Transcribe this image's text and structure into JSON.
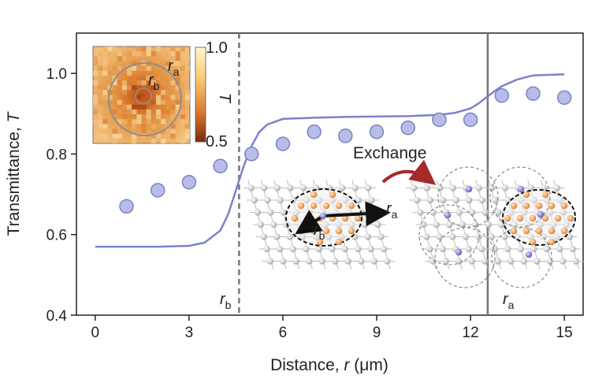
{
  "chart_data": {
    "type": "scatter",
    "title": "",
    "xlabel": "Distance, r (μm)",
    "xlabel_main": "Distance, ",
    "xlabel_var": "r",
    "xlabel_unit": " (μm)",
    "ylabel": "Transmittance, T",
    "ylabel_main": "Transmittance, ",
    "ylabel_var": "T",
    "xlim": [
      -0.6,
      15.6
    ],
    "ylim": [
      0.4,
      1.1
    ],
    "xticks": [
      0,
      3,
      6,
      9,
      12,
      15
    ],
    "yticks": [
      0.4,
      0.6,
      0.8,
      1.0
    ],
    "xtick_labels": [
      "0",
      "3",
      "6",
      "9",
      "12",
      "15"
    ],
    "ytick_labels": [
      "0.4",
      "0.6",
      "0.8",
      "1.0"
    ],
    "grid": false,
    "series": [
      {
        "kind": "points",
        "color": "#b8bde8",
        "edge_color": "#7b82c9",
        "x": [
          1,
          2,
          3,
          4,
          5,
          6,
          7,
          8,
          9,
          10,
          11,
          12,
          13,
          14,
          15
        ],
        "y": [
          0.67,
          0.71,
          0.73,
          0.77,
          0.8,
          0.825,
          0.855,
          0.845,
          0.855,
          0.865,
          0.885,
          0.885,
          0.945,
          0.95,
          0.94
        ]
      },
      {
        "kind": "line",
        "color": "#7b82c9",
        "x": [
          0,
          1,
          2,
          3,
          3.5,
          4,
          4.25,
          4.5,
          4.75,
          5,
          5.25,
          5.5,
          6,
          7,
          8,
          9,
          10,
          11,
          11.5,
          12,
          12.25,
          12.5,
          12.75,
          13,
          13.5,
          14,
          15
        ],
        "y": [
          0.57,
          0.57,
          0.57,
          0.572,
          0.58,
          0.61,
          0.65,
          0.71,
          0.77,
          0.82,
          0.855,
          0.873,
          0.887,
          0.89,
          0.892,
          0.893,
          0.894,
          0.897,
          0.902,
          0.913,
          0.925,
          0.94,
          0.955,
          0.968,
          0.985,
          0.995,
          0.998
        ]
      }
    ],
    "vlines": [
      {
        "x": 4.6,
        "style": "dashed",
        "label_main": "r",
        "label_sub": "b"
      },
      {
        "x": 12.55,
        "style": "solid",
        "label_main": "r",
        "label_sub": "a"
      }
    ],
    "inset": {
      "colorbar_ticks": [
        "1.0",
        "0.5"
      ],
      "colorbar_label": "T",
      "ring_outer": {
        "main": "r",
        "sub": "a"
      },
      "ring_inner": {
        "main": "r",
        "sub": "b"
      }
    },
    "schematic": {
      "exchange_label": "Exchange",
      "vec_a": {
        "main": "r",
        "sub": "a"
      },
      "vec_b": {
        "main": "r",
        "sub": "b"
      }
    },
    "colors": {
      "axis": "#222222",
      "vline": "#777777",
      "accent_orange": "#f0a868",
      "accent_purple": "#8a86c8",
      "arrow_red": "#a52a2a",
      "atom_grey": "#c8c8c8"
    }
  }
}
